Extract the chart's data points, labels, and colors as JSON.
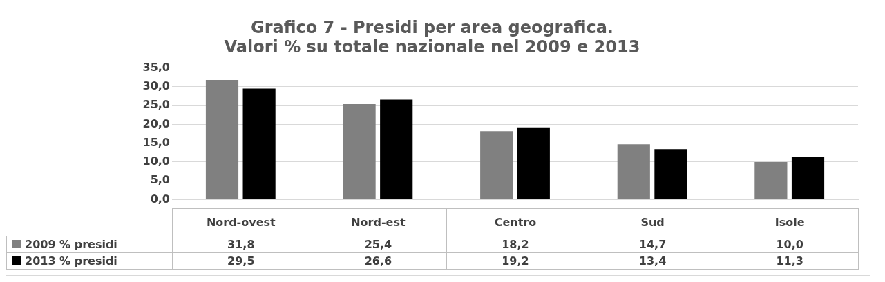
{
  "chart_data": {
    "type": "bar",
    "title": [
      "Grafico 7 - Presidi per area geografica.",
      "Valori % su totale nazionale nel 2009 e 2013"
    ],
    "categories": [
      "Nord-ovest",
      "Nord-est",
      "Centro",
      "Sud",
      "Isole"
    ],
    "series": [
      {
        "name": "2009 % presidi",
        "color": "#808080",
        "values": [
          31.8,
          25.4,
          18.2,
          14.7,
          10.0
        ],
        "value_labels": [
          "31,8",
          "25,4",
          "18,2",
          "14,7",
          "10,0"
        ]
      },
      {
        "name": "2013 % presidi",
        "color": "#000000",
        "values": [
          29.5,
          26.6,
          19.2,
          13.4,
          11.3
        ],
        "value_labels": [
          "29,5",
          "26,6",
          "19,2",
          "13,4",
          "11,3"
        ]
      }
    ],
    "ylim": [
      0,
      35
    ],
    "yticks": [
      {
        "value": 0,
        "label": "0,0"
      },
      {
        "value": 5,
        "label": "5,0"
      },
      {
        "value": 10,
        "label": "10,0"
      },
      {
        "value": 15,
        "label": "15,0"
      },
      {
        "value": 20,
        "label": "20,0"
      },
      {
        "value": 25,
        "label": "25,0"
      },
      {
        "value": 30,
        "label": "30,0"
      },
      {
        "value": 35,
        "label": "35,0"
      }
    ],
    "grid": "y",
    "legend": "bottom"
  }
}
